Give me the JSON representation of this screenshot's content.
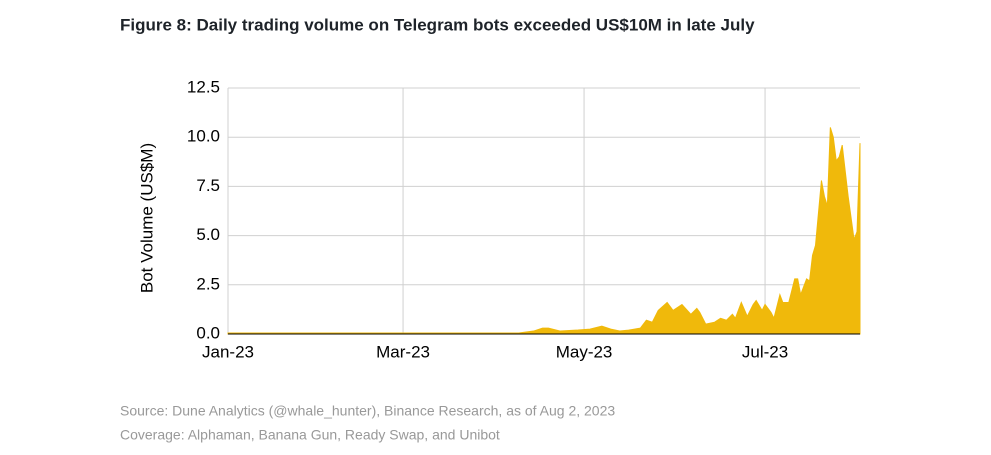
{
  "chart_data": {
    "type": "area",
    "title": "Figure 8: Daily trading volume on Telegram bots exceeded US$10M in late July",
    "y_label": "Bot Volume (US$M)",
    "x": [
      0,
      20,
      40,
      60,
      80,
      98,
      103,
      106,
      108,
      112,
      118,
      122,
      126,
      129,
      132,
      135,
      139,
      141,
      143,
      145,
      148,
      150,
      153,
      156,
      158,
      159,
      161,
      164,
      166,
      168,
      170,
      171,
      173,
      175,
      177,
      178,
      180,
      181,
      183,
      184,
      186,
      187,
      189,
      191,
      192,
      193,
      195,
      196,
      197,
      198,
      200,
      201,
      202,
      203,
      204,
      205,
      206,
      207,
      209,
      211,
      212,
      213
    ],
    "values": [
      0.05,
      0.05,
      0.05,
      0.05,
      0.05,
      0.05,
      0.15,
      0.3,
      0.3,
      0.15,
      0.2,
      0.25,
      0.4,
      0.25,
      0.15,
      0.2,
      0.3,
      0.7,
      0.6,
      1.2,
      1.6,
      1.2,
      1.5,
      1.0,
      1.3,
      1.1,
      0.5,
      0.6,
      0.8,
      0.7,
      1.0,
      0.8,
      1.6,
      0.9,
      1.5,
      1.7,
      1.2,
      1.5,
      1.1,
      0.8,
      2.0,
      1.6,
      1.6,
      2.8,
      2.8,
      2.0,
      2.8,
      2.7,
      4.0,
      4.5,
      7.8,
      7.0,
      6.5,
      10.5,
      10.0,
      8.8,
      9.0,
      9.6,
      7.0,
      4.8,
      5.2,
      9.7
    ],
    "color": "#f0b90b",
    "xlim": [
      0,
      213
    ],
    "xticks": [
      {
        "value": 0,
        "label": "Jan-23"
      },
      {
        "value": 59,
        "label": "Mar-23"
      },
      {
        "value": 120,
        "label": "May-23"
      },
      {
        "value": 181,
        "label": "Jul-23"
      }
    ],
    "ylim": [
      0,
      12.5
    ],
    "yticks": [
      {
        "value": 0,
        "label": "0.0"
      },
      2.5,
      {
        "value": 5,
        "label": "5.0"
      },
      7.5,
      {
        "value": 10,
        "label": "10.0"
      },
      12.5
    ],
    "grid": true,
    "notes": [
      "Source: Dune Analytics (@whale_hunter), Binance Research, as of Aug 2, 2023",
      "Coverage: Alphaman, Banana Gun, Ready Swap, and Unibot"
    ]
  }
}
